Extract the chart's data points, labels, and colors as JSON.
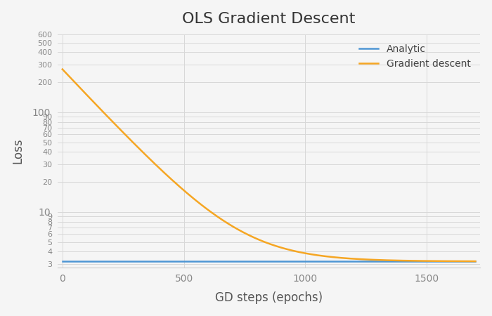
{
  "title": "OLS Gradient Descent",
  "xlabel": "GD steps (epochs)",
  "ylabel": "Loss",
  "analytic_value": 3.2,
  "gd_start": 270.0,
  "gd_decay": 0.006,
  "n_steps": 1700,
  "analytic_color": "#4e96d4",
  "gd_color": "#f5a623",
  "background_color": "#f5f5f5",
  "grid_color": "#d8d8d8",
  "ylim_low": 2.8,
  "ylim_high": 600,
  "xlim_low": -20,
  "xlim_high": 1720,
  "legend_labels": [
    "Analytic",
    "Gradient descent"
  ],
  "title_fontsize": 16,
  "label_fontsize": 12,
  "tick_fontsize": 10
}
